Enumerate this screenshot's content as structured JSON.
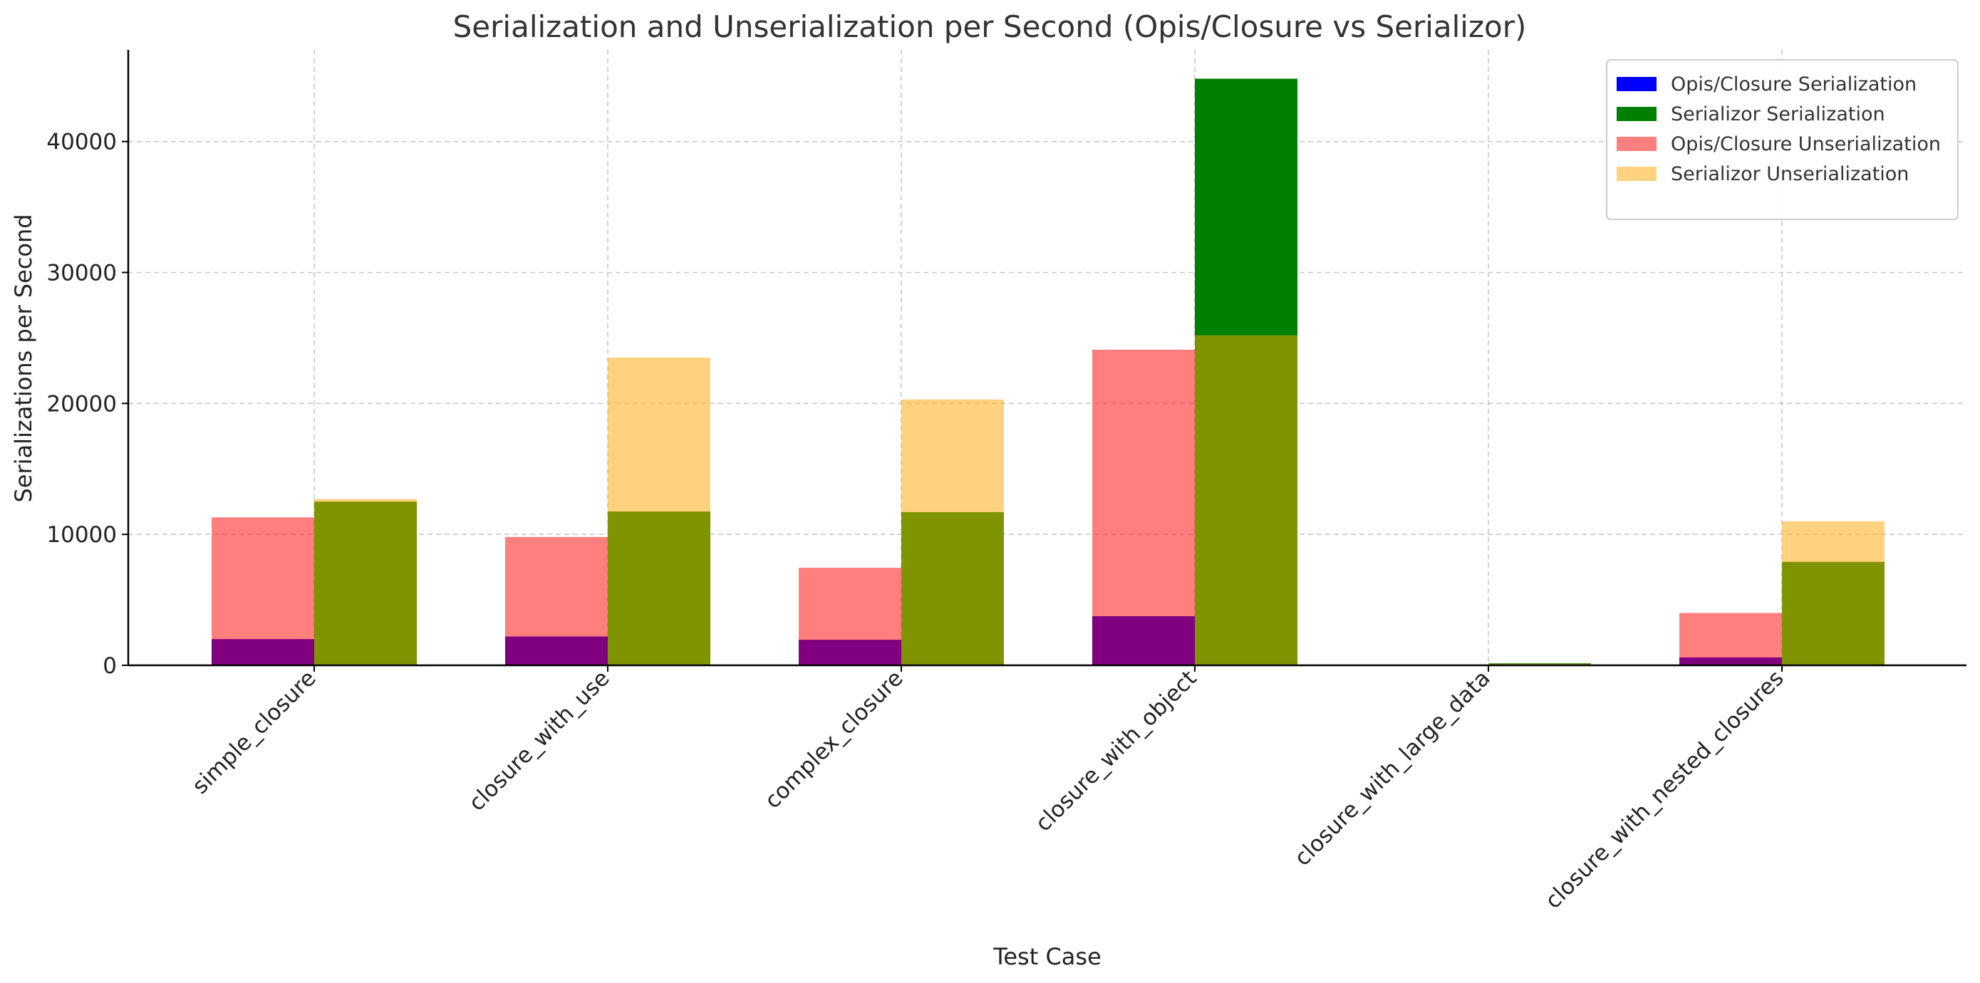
{
  "chart_data": {
    "type": "bar",
    "title": "Serialization and Unserialization per Second (Opis/Closure vs Serializor)",
    "xlabel": "Test Case",
    "ylabel": "Serializations per Second",
    "categories": [
      "simple_closure",
      "closure_with_use",
      "complex_closure",
      "closure_with_object",
      "closure_with_large_data",
      "closure_with_nested_closures"
    ],
    "ylim": [
      0,
      47000
    ],
    "yticks": [
      0,
      10000,
      20000,
      30000,
      40000
    ],
    "grid": true,
    "legend_position": "top-right",
    "bar_layout": "grouped-overlapping",
    "series": [
      {
        "name": "Opis/Closure Serialization",
        "group": "left",
        "color": "#0000ff",
        "opacity": 1.0,
        "values": [
          2000,
          2200,
          1950,
          3750,
          30,
          600
        ]
      },
      {
        "name": "Serializor Serialization",
        "group": "right",
        "color": "#008000",
        "opacity": 1.0,
        "values": [
          12500,
          11750,
          11700,
          44800,
          150,
          7900
        ]
      },
      {
        "name": "Opis/Closure Unserialization",
        "group": "left",
        "color": "#ff0000",
        "opacity": 0.5,
        "values": [
          11300,
          9800,
          7450,
          24100,
          40,
          4000
        ]
      },
      {
        "name": "Serializor Unserialization",
        "group": "right",
        "color": "#ffa500",
        "opacity": 0.5,
        "values": [
          12700,
          23500,
          20300,
          25200,
          120,
          11000
        ]
      }
    ]
  }
}
